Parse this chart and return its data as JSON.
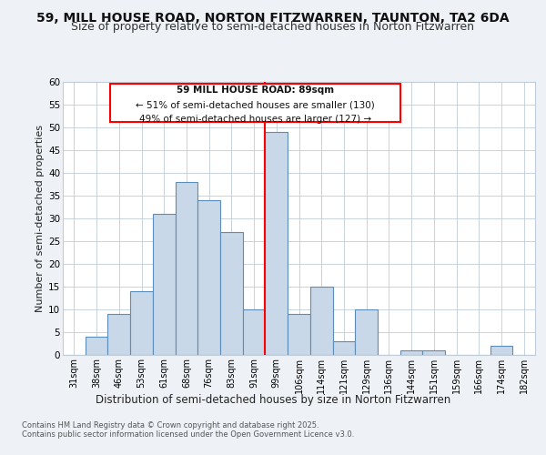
{
  "title": "59, MILL HOUSE ROAD, NORTON FITZWARREN, TAUNTON, TA2 6DA",
  "subtitle": "Size of property relative to semi-detached houses in Norton Fitzwarren",
  "xlabel": "Distribution of semi-detached houses by size in Norton Fitzwarren",
  "ylabel": "Number of semi-detached properties",
  "categories": [
    "31sqm",
    "38sqm",
    "46sqm",
    "53sqm",
    "61sqm",
    "68sqm",
    "76sqm",
    "83sqm",
    "91sqm",
    "99sqm",
    "106sqm",
    "114sqm",
    "121sqm",
    "129sqm",
    "136sqm",
    "144sqm",
    "151sqm",
    "159sqm",
    "166sqm",
    "174sqm",
    "182sqm"
  ],
  "values": [
    0,
    4,
    9,
    14,
    31,
    38,
    34,
    27,
    10,
    49,
    9,
    15,
    3,
    10,
    0,
    1,
    1,
    0,
    0,
    2,
    0
  ],
  "bar_color": "#c8d8e8",
  "bar_edge_color": "#5b8db8",
  "reference_line_x": 8.5,
  "pct_smaller": 51,
  "count_smaller": 130,
  "pct_larger": 49,
  "count_larger": 127,
  "property_label": "59 MILL HOUSE ROAD: 89sqm",
  "ylim": [
    0,
    60
  ],
  "yticks": [
    0,
    5,
    10,
    15,
    20,
    25,
    30,
    35,
    40,
    45,
    50,
    55,
    60
  ],
  "background_color": "#eef2f7",
  "plot_background": "#ffffff",
  "grid_color": "#c0ccd8",
  "footer": "Contains HM Land Registry data © Crown copyright and database right 2025.\nContains public sector information licensed under the Open Government Licence v3.0.",
  "title_fontsize": 10,
  "subtitle_fontsize": 9,
  "xlabel_fontsize": 8.5,
  "ylabel_fontsize": 8
}
